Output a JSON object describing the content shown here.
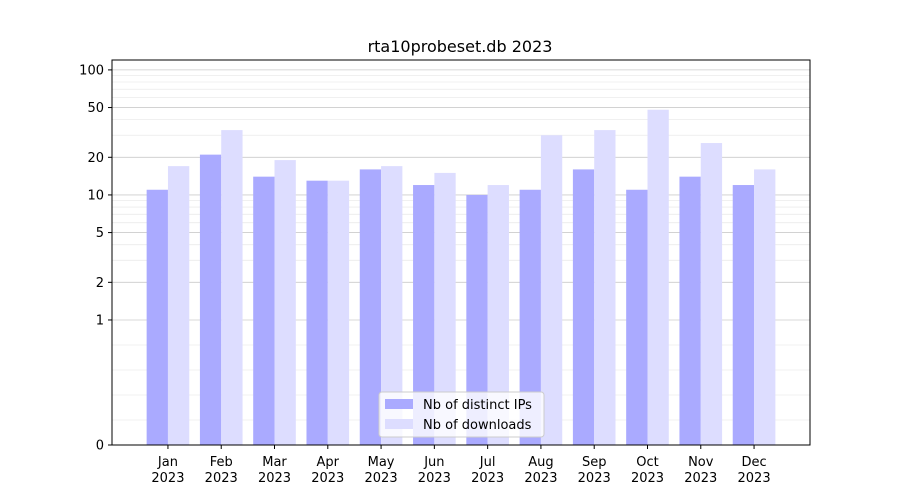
{
  "chart_data": {
    "type": "bar",
    "title": "rta10probeset.db 2023",
    "xlabel": "",
    "ylabel": "",
    "yscale": "symlog",
    "ylim": [
      0,
      120
    ],
    "yticks": [
      0,
      1,
      2,
      5,
      10,
      20,
      50,
      100
    ],
    "ytick_labels": [
      "0",
      "1",
      "2",
      "5",
      "10",
      "20",
      "50",
      "100"
    ],
    "grid": "horizontal",
    "legend_position": "bottom-center",
    "categories": [
      "Jan\n2023",
      "Feb\n2023",
      "Mar\n2023",
      "Apr\n2023",
      "May\n2023",
      "Jun\n2023",
      "Jul\n2023",
      "Aug\n2023",
      "Sep\n2023",
      "Oct\n2023",
      "Nov\n2023",
      "Dec\n2023"
    ],
    "category_lines": [
      [
        "Jan",
        "2023"
      ],
      [
        "Feb",
        "2023"
      ],
      [
        "Mar",
        "2023"
      ],
      [
        "Apr",
        "2023"
      ],
      [
        "May",
        "2023"
      ],
      [
        "Jun",
        "2023"
      ],
      [
        "Jul",
        "2023"
      ],
      [
        "Aug",
        "2023"
      ],
      [
        "Sep",
        "2023"
      ],
      [
        "Oct",
        "2023"
      ],
      [
        "Nov",
        "2023"
      ],
      [
        "Dec",
        "2023"
      ]
    ],
    "series": [
      {
        "name": "Nb of distinct IPs",
        "color": "#aaaaff",
        "values": [
          11,
          21,
          14,
          13,
          16,
          12,
          10,
          11,
          16,
          11,
          14,
          12
        ]
      },
      {
        "name": "Nb of downloads",
        "color": "#ddddff",
        "values": [
          17,
          33,
          19,
          13,
          17,
          15,
          12,
          30,
          33,
          48,
          26,
          16
        ]
      }
    ]
  }
}
